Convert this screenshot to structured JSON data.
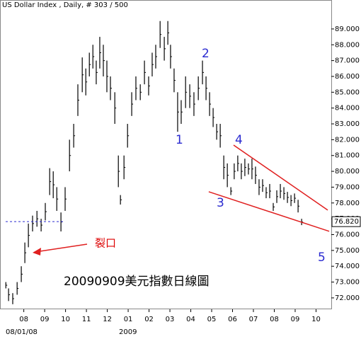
{
  "chart_data": {
    "type": "range-bar",
    "title": "US Dollar Index , Daily, # 303 / 500",
    "start_label": "08/01/08",
    "year_label": "2009",
    "color": "#000000",
    "x": [
      0.14,
      0.27,
      0.47,
      0.68,
      0.88,
      1.05,
      1.22,
      1.42,
      1.63,
      1.83,
      2.03,
      2.24,
      2.41,
      2.58,
      2.78,
      2.98,
      3.19,
      3.39,
      3.59,
      3.8,
      3.97,
      4.14,
      4.31,
      4.47,
      4.64,
      4.81,
      4.98,
      5.15,
      5.36,
      5.53,
      5.63,
      5.8,
      5.97,
      6.17,
      6.37,
      6.58,
      6.78,
      6.98,
      7.15,
      7.32,
      7.53,
      7.73,
      7.9,
      8.03,
      8.2,
      8.37,
      8.54,
      8.75,
      8.95,
      9.15,
      9.36,
      9.56,
      9.73,
      9.9,
      10.07,
      10.24,
      10.41,
      10.58,
      10.75,
      10.92,
      11.08,
      11.25,
      11.42,
      11.59,
      11.76,
      11.93,
      12.1,
      12.27,
      12.44,
      12.61,
      12.78,
      12.95,
      13.12,
      13.29,
      13.46,
      13.63,
      13.8,
      13.97,
      14.14,
      14.31
    ],
    "high": [
      73.0,
      72.6,
      72.3,
      73.0,
      74.0,
      75.5,
      76.7,
      77.2,
      77.5,
      77.0,
      78.0,
      80.2,
      80.0,
      79.0,
      77.4,
      79.0,
      82.0,
      83.0,
      85.5,
      87.2,
      86.5,
      87.5,
      88.0,
      87.0,
      88.5,
      88.0,
      87.0,
      86.0,
      85.0,
      81.0,
      78.5,
      81.0,
      83.0,
      85.0,
      86.0,
      85.5,
      87.0,
      86.0,
      87.5,
      88.0,
      89.5,
      88.5,
      89.5,
      88.0,
      86.5,
      85.0,
      84.5,
      86.0,
      85.5,
      85.0,
      86.0,
      87.0,
      86.0,
      85.0,
      84.0,
      83.0,
      83.0,
      81.0,
      80.5,
      79.0,
      80.5,
      81.0,
      80.5,
      80.8,
      80.5,
      80.8,
      80.3,
      79.5,
      79.5,
      79.0,
      79.2,
      78.0,
      78.8,
      79.2,
      79.0,
      78.7,
      78.5,
      78.6,
      78.2,
      77.0
    ],
    "low": [
      72.6,
      71.8,
      71.6,
      72.2,
      73.0,
      74.2,
      75.2,
      76.2,
      76.5,
      76.2,
      76.9,
      78.5,
      78.3,
      77.5,
      76.2,
      77.5,
      80.0,
      81.5,
      83.5,
      85.0,
      84.8,
      86.0,
      86.5,
      85.5,
      86.5,
      86.0,
      85.0,
      84.5,
      83.0,
      79.0,
      77.9,
      79.5,
      81.5,
      83.5,
      84.5,
      84.5,
      85.5,
      84.8,
      86.0,
      86.5,
      87.8,
      87.0,
      88.0,
      86.5,
      85.0,
      82.5,
      83.0,
      84.0,
      84.0,
      83.5,
      84.5,
      85.5,
      84.5,
      83.5,
      82.8,
      82.0,
      81.5,
      79.5,
      79.0,
      78.5,
      79.5,
      80.0,
      79.5,
      79.7,
      79.8,
      79.5,
      79.2,
      78.5,
      78.7,
      78.3,
      78.3,
      77.5,
      78.0,
      78.3,
      78.2,
      78.0,
      77.8,
      78.0,
      77.4,
      76.6
    ],
    "xlim": [
      -0.14,
      15.73
    ],
    "xticks": [
      {
        "value": 1,
        "label": "08"
      },
      {
        "value": 2,
        "label": "09"
      },
      {
        "value": 3,
        "label": "10"
      },
      {
        "value": 4,
        "label": "11"
      },
      {
        "value": 5,
        "label": "12"
      },
      {
        "value": 6,
        "label": "01"
      },
      {
        "value": 7,
        "label": "02"
      },
      {
        "value": 8,
        "label": "03"
      },
      {
        "value": 9,
        "label": "04"
      },
      {
        "value": 10,
        "label": "05"
      },
      {
        "value": 11,
        "label": "06"
      },
      {
        "value": 12,
        "label": "07"
      },
      {
        "value": 13,
        "label": "08"
      },
      {
        "value": 14,
        "label": "09"
      },
      {
        "value": 15,
        "label": "10"
      }
    ],
    "ylim": [
      71.28,
      90.83
    ],
    "yticks": [
      {
        "value": 72,
        "label": "72.000"
      },
      {
        "value": 73,
        "label": "73.000"
      },
      {
        "value": 74,
        "label": "74.000"
      },
      {
        "value": 75,
        "label": "75.000"
      },
      {
        "value": 76,
        "label": "76.000"
      },
      {
        "value": 77,
        "label": "77.000"
      },
      {
        "value": 78,
        "label": "78.000"
      },
      {
        "value": 79,
        "label": "79.000"
      },
      {
        "value": 80,
        "label": "80.000"
      },
      {
        "value": 81,
        "label": "81.000"
      },
      {
        "value": 82,
        "label": "82.000"
      },
      {
        "value": 83,
        "label": "83.000"
      },
      {
        "value": 84,
        "label": "84.000"
      },
      {
        "value": 85,
        "label": "85.000"
      },
      {
        "value": 86,
        "label": "86.000"
      },
      {
        "value": 87,
        "label": "87.000"
      },
      {
        "value": 88,
        "label": "88.000"
      },
      {
        "value": 89,
        "label": "89.000"
      }
    ],
    "last_price": {
      "value": 76.82,
      "label": "76.820"
    },
    "trendline_color": "#e02020",
    "trendlines": [
      {
        "x": [
          11.05,
          15.56
        ],
        "y": [
          81.66,
          77.55
        ]
      },
      {
        "x": [
          9.86,
          15.63
        ],
        "y": [
          78.71,
          76.21
        ]
      }
    ],
    "annotations": [
      "1",
      "2",
      "3",
      "4",
      "5",
      "裂口",
      "20090909美元指數日線圖"
    ]
  }
}
